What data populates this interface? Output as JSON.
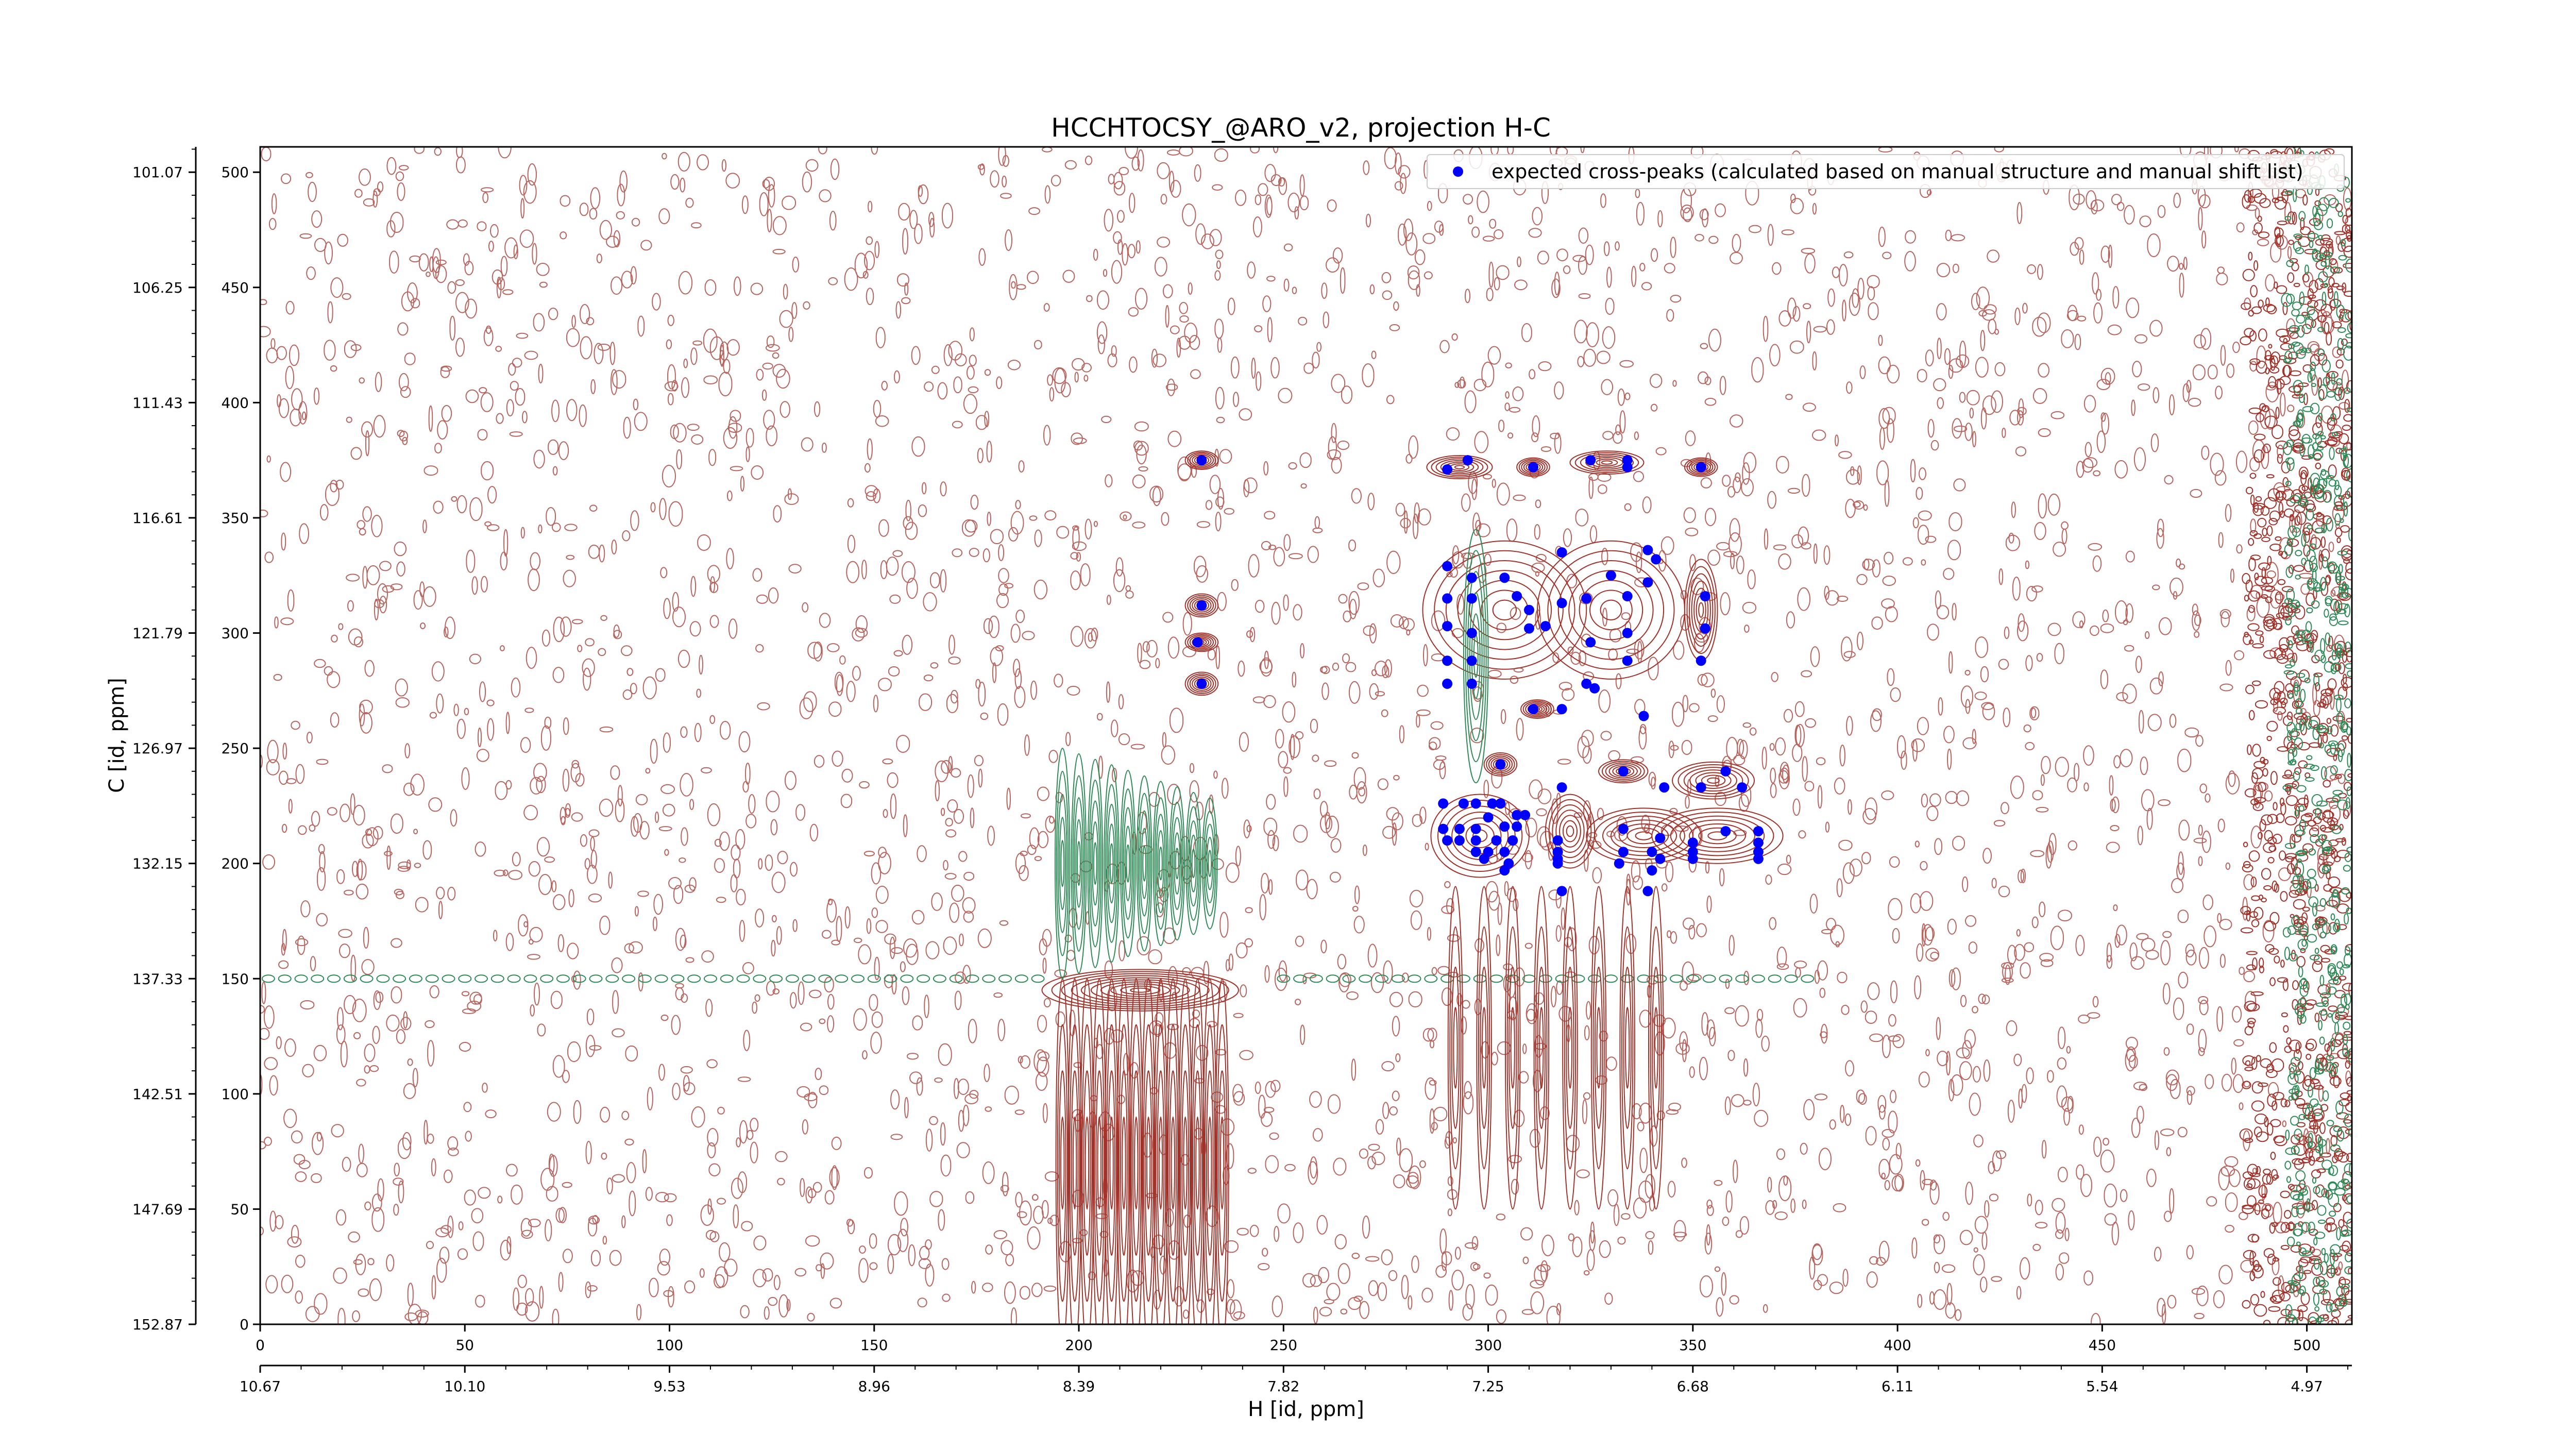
{
  "chart_data": {
    "type": "scatter",
    "title": "HCCHTOCSY_@ARO_v2, projection H-C",
    "xlabel": "H [id, ppm]",
    "ylabel": "C [id, ppm]",
    "xlim": [
      0,
      511
    ],
    "ylim": [
      0,
      511
    ],
    "x_index_ticks": [
      "0",
      "50",
      "100",
      "150",
      "200",
      "250",
      "300",
      "350",
      "400",
      "450",
      "500"
    ],
    "x_ppm_ticks": [
      "10.67",
      "10.10",
      "9.53",
      "8.96",
      "8.39",
      "7.82",
      "7.25",
      "6.68",
      "6.11",
      "5.54",
      "4.97"
    ],
    "y_index_ticks": [
      "0",
      "50",
      "100",
      "150",
      "200",
      "250",
      "300",
      "350",
      "400",
      "450",
      "500"
    ],
    "y_ppm_ticks": [
      "152.87",
      "147.69",
      "142.51",
      "137.33",
      "132.15",
      "126.97",
      "121.79",
      "116.61",
      "111.43",
      "106.25",
      "101.07"
    ],
    "legend": {
      "position": "top-right",
      "entries": [
        "expected cross-peaks (calculated based on manual structure and manual shift list)"
      ]
    },
    "colors": {
      "positive_contour": "#a0322a",
      "negative_contour": "#2e8b57",
      "marker": "#0000ff"
    },
    "series": [
      {
        "name": "expected cross-peaks (calculated based on manual structure and manual shift list)",
        "x": [
          230,
          230,
          229,
          230,
          290,
          295,
          311,
          325,
          334,
          334,
          352,
          290,
          296,
          304,
          318,
          330,
          339,
          341,
          339,
          290,
          296,
          307,
          310,
          318,
          324,
          334,
          353,
          290,
          296,
          310,
          325,
          334,
          353,
          290,
          296,
          314,
          324,
          334,
          352,
          290,
          296,
          326,
          338,
          311,
          318,
          303,
          318,
          333,
          343,
          352,
          358,
          362,
          289,
          294,
          297,
          301,
          303,
          307,
          309,
          289,
          293,
          297,
          300,
          304,
          307,
          290,
          293,
          297,
          302,
          306,
          317,
          333,
          342,
          358,
          366,
          297,
          300,
          304,
          317,
          333,
          340,
          350,
          366,
          305,
          317,
          332,
          350,
          366,
          299,
          317,
          342,
          350,
          366,
          304,
          340,
          318,
          339
        ],
        "y": [
          375,
          312,
          296,
          278,
          371,
          375,
          372,
          375,
          375,
          372,
          372,
          329,
          324,
          324,
          335,
          325,
          336,
          332,
          322,
          315,
          315,
          316,
          310,
          313,
          315,
          316,
          316,
          303,
          300,
          302,
          296,
          300,
          302,
          288,
          288,
          303,
          278,
          288,
          288,
          278,
          278,
          276,
          264,
          267,
          267,
          243,
          233,
          240,
          233,
          233,
          240,
          233,
          226,
          226,
          226,
          226,
          226,
          221,
          221,
          215,
          215,
          215,
          220,
          216,
          216,
          210,
          210,
          210,
          210,
          210,
          210,
          215,
          211,
          214,
          214,
          205,
          205,
          205,
          205,
          205,
          205,
          205,
          205,
          200,
          200,
          200,
          209,
          209,
          202,
          202,
          202,
          202,
          202,
          197,
          197,
          188,
          188
        ]
      }
    ]
  }
}
